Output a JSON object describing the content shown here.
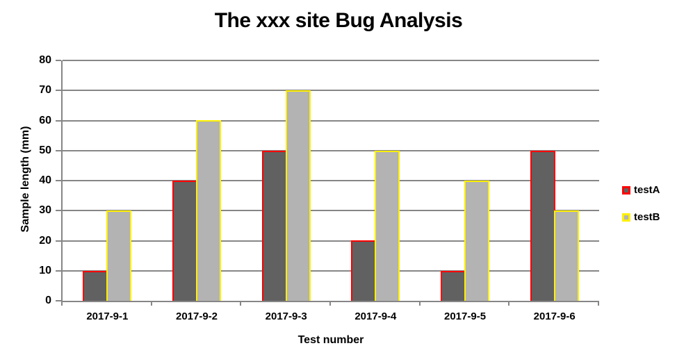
{
  "title": "The xxx site Bug Analysis",
  "colors": {
    "background": "#FFFFFF",
    "gridline": "#868686",
    "axis": "#868686",
    "text": "#000000",
    "testA_fill": "#616161",
    "testA_border": "#FF0000",
    "testB_fill": "#B3B3B3",
    "testB_border": "#FFF000"
  },
  "chart_data": {
    "type": "bar",
    "title": "The xxx site Bug Analysis",
    "xlabel": "Test number",
    "ylabel": "Sample length (mm)",
    "categories": [
      "2017-9-1",
      "2017-9-2",
      "2017-9-3",
      "2017-9-4",
      "2017-9-5",
      "2017-9-6"
    ],
    "series": [
      {
        "name": "testA",
        "values": [
          10,
          40,
          50,
          20,
          10,
          50
        ],
        "fill": "#616161",
        "border": "#FF0000"
      },
      {
        "name": "testB",
        "values": [
          30,
          60,
          70,
          50,
          40,
          30
        ],
        "fill": "#B3B3B3",
        "border": "#FFF000"
      }
    ],
    "ylim": [
      0,
      80
    ],
    "yticks": [
      0,
      10,
      20,
      30,
      40,
      50,
      60,
      70,
      80
    ],
    "grid": true,
    "legend_position": "right"
  }
}
